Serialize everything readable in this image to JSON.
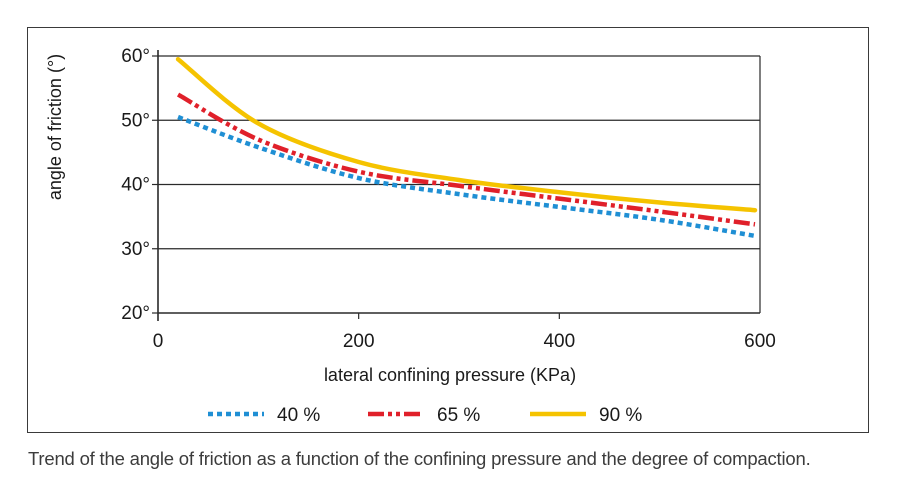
{
  "caption": "Trend of the angle of friction as a function of the confining pressure and the degree of compaction.",
  "chart_data": {
    "type": "line",
    "xlabel": "lateral confining pressure (KPa)",
    "ylabel": "angle of friction (°)",
    "xlim": [
      0,
      600
    ],
    "ylim": [
      20,
      60
    ],
    "x_ticks": [
      "0",
      "200",
      "400",
      "600"
    ],
    "y_ticks": [
      "20°",
      "30°",
      "40°",
      "50°",
      "60°"
    ],
    "grid": "horizontal",
    "legend_position": "bottom",
    "series": [
      {
        "name": "40 %",
        "color": "#1f8fd4",
        "style": "dotted",
        "x": [
          20,
          100,
          200,
          300,
          400,
          500,
          595
        ],
        "y": [
          50.5,
          45.8,
          41.0,
          38.5,
          36.5,
          34.5,
          32.0
        ]
      },
      {
        "name": "65 %",
        "color": "#e0202a",
        "style": "dash-dot",
        "x": [
          20,
          100,
          200,
          300,
          400,
          500,
          595
        ],
        "y": [
          54.0,
          47.0,
          42.0,
          39.8,
          37.8,
          35.8,
          33.8
        ]
      },
      {
        "name": "90 %",
        "color": "#f5c300",
        "style": "solid",
        "x": [
          20,
          100,
          200,
          300,
          400,
          500,
          595
        ],
        "y": [
          59.5,
          49.5,
          43.5,
          40.7,
          38.8,
          37.2,
          36.0
        ]
      }
    ]
  }
}
